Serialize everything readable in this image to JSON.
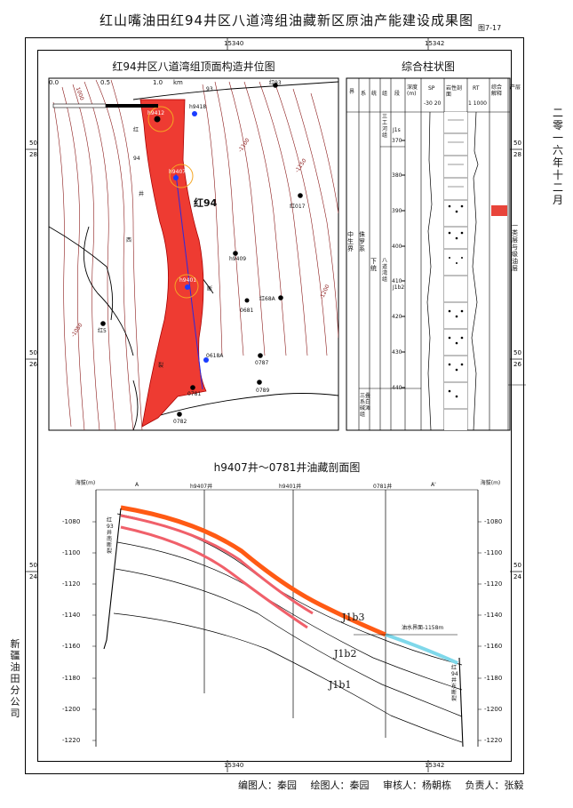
{
  "title": "红山嘴油田红94井区八道湾组油藏新区原油产能建设成果图",
  "figure_no": "图7-17",
  "date_vertical": "二零一六年十二月",
  "company_vertical": "新疆油田分公司",
  "grid": {
    "x_top_left": "15340",
    "x_top_right": "15342",
    "x_bottom_left": "15340",
    "x_bottom_right": "15342",
    "y_labels": [
      "50\n28",
      "50\n26",
      "50\n24"
    ]
  },
  "map": {
    "title": "红94井区八道湾组顶面构造井位图",
    "scale": {
      "ticks": [
        "0.0",
        "0.5",
        "1.0"
      ],
      "unit": "km"
    },
    "contour_labels": [
      "1000",
      "-1100",
      "-1150",
      "-1200",
      "-1050"
    ],
    "fault_labels": [
      "红",
      "94",
      "井",
      "西",
      "断",
      "裂",
      "93"
    ],
    "big_label": "红94",
    "wells": [
      "h9412",
      "h9418",
      "h9407",
      "红017",
      "h9409",
      "h9401",
      "红68A",
      "0681",
      "红5",
      "0618A",
      "0787",
      "0781",
      "0789",
      "0782",
      "红93"
    ]
  },
  "column": {
    "title": "综合柱状图",
    "headers": [
      "界",
      "系",
      "统",
      "组",
      "段",
      "深度(m)",
      "SP",
      "岩性剖面",
      "RT",
      "综合解释",
      "产层"
    ],
    "sp_scale": "-30 20",
    "rt_scale": "1 1000",
    "depths": [
      "370",
      "380",
      "390",
      "400",
      "410",
      "420",
      "430",
      "440"
    ],
    "strat": {
      "era": "中生界",
      "system": "侏罗系",
      "series": "下统",
      "formation": "八道湾组",
      "member_top": "三工河组",
      "member_bottom": "J1b2",
      "bottom_unit": "三叠系白碱滩组"
    },
    "unit_label": "J1s",
    "zone_label": "一类层与级油层"
  },
  "section": {
    "title": "h9407井～0781井油藏剖面图",
    "y_axis_label": "海拔(m)",
    "y_ticks": [
      "-1080",
      "-1100",
      "-1120",
      "-1140",
      "-1160",
      "-1180",
      "-1200",
      "-1220"
    ],
    "well_heads": [
      "A",
      "h9407井",
      "h9401井",
      "0781井",
      "A'"
    ],
    "layers": [
      "J1b3",
      "J1b2",
      "J1b1"
    ],
    "contact_label": "油水界面-1158m",
    "left_fault": "红93井南断裂",
    "right_fault": "红94井东断裂",
    "colors": {
      "oil": "#ff5a14",
      "oil2": "#f0606a",
      "water": "#7fd8ea",
      "fault": "#ff3b30"
    }
  },
  "footer": {
    "drawer": "编图人：秦园",
    "plotter": "绘图人：秦园",
    "reviewer": "审核人：杨朝栋",
    "responsible": "负责人：张毅"
  }
}
